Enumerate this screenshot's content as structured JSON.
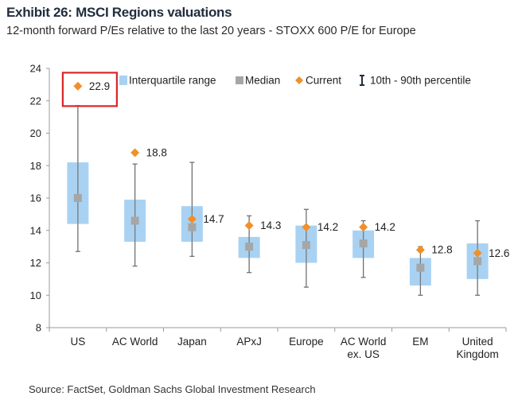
{
  "header": {
    "title": "Exhibit 26: MSCI Regions valuations",
    "subtitle": "12-month forward P/Es relative to the last 20 years - STOXX 600 P/E for Europe"
  },
  "footer": {
    "source": "Source: FactSet, Goldman Sachs Global Investment Research"
  },
  "chart_data": {
    "type": "box",
    "ylim": [
      8,
      24
    ],
    "yticks": [
      8,
      10,
      12,
      14,
      16,
      18,
      20,
      22,
      24
    ],
    "grid": false,
    "legend_position": "top",
    "legend": [
      {
        "key": "iqr",
        "label": "Interquartile range"
      },
      {
        "key": "median",
        "label": "Median"
      },
      {
        "key": "current",
        "label": "Current"
      },
      {
        "key": "whisker",
        "label": "10th - 90th percentile"
      }
    ],
    "categories": [
      "US",
      "AC World",
      "Japan",
      "APxJ",
      "Europe",
      "AC World\nex. US",
      "EM",
      "United\nKingdom"
    ],
    "series": [
      {
        "name": "10th - 90th percentile",
        "p10": [
          12.7,
          11.8,
          12.4,
          11.4,
          10.5,
          11.1,
          10.0,
          10.0
        ],
        "p90": [
          21.7,
          18.1,
          18.2,
          14.9,
          15.3,
          14.6,
          13.0,
          14.6
        ]
      },
      {
        "name": "Interquartile range",
        "q1": [
          14.4,
          13.3,
          13.3,
          12.3,
          12.0,
          12.3,
          10.6,
          11.0
        ],
        "q3": [
          18.2,
          15.9,
          15.5,
          13.6,
          14.3,
          14.0,
          12.3,
          13.2
        ]
      },
      {
        "name": "Median",
        "values": [
          16.0,
          14.6,
          14.2,
          13.0,
          13.1,
          13.2,
          11.7,
          12.1
        ]
      },
      {
        "name": "Current",
        "values": [
          22.9,
          18.8,
          14.7,
          14.3,
          14.2,
          14.2,
          12.8,
          12.6
        ],
        "labels": [
          "22.9",
          "18.8",
          "14.7",
          "14.3",
          "14.2",
          "14.2",
          "12.8",
          "12.6"
        ]
      }
    ],
    "highlight_category": "US",
    "colors": {
      "iqr": "#a9d2f2",
      "median": "#a6a6a6",
      "current": "#f0902a",
      "whisker": "#707070",
      "highlight": "#d9252a",
      "axis": "#9b9b9b",
      "text": "#1f1f1f"
    }
  }
}
